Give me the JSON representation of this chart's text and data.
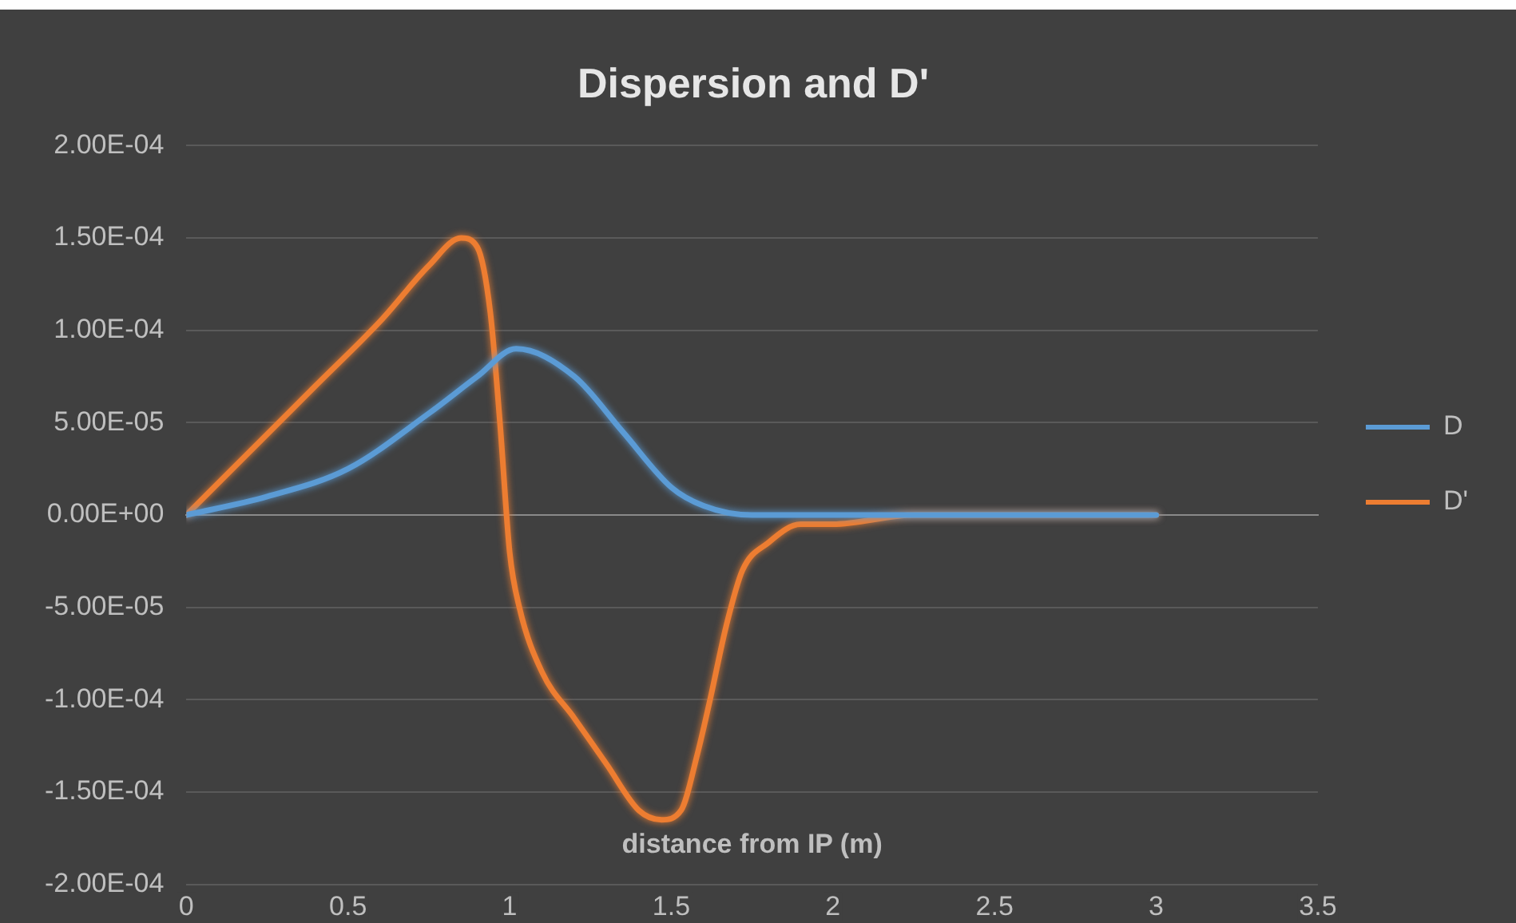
{
  "chart_data": {
    "type": "line",
    "title": "Dispersion and D'",
    "xlabel": "distance from IP (m)",
    "xlim": [
      0,
      3.5
    ],
    "xticks": [
      0,
      0.5,
      1,
      1.5,
      2,
      2.5,
      3,
      3.5
    ],
    "ylim": [
      -0.0002,
      0.0002
    ],
    "yticks": [
      {
        "value": -0.0002,
        "label": "-2.00E-04"
      },
      {
        "value": -0.00015,
        "label": "-1.50E-04"
      },
      {
        "value": -0.0001,
        "label": "-1.00E-04"
      },
      {
        "value": -5e-05,
        "label": "-5.00E-05"
      },
      {
        "value": 0,
        "label": "0.00E+00"
      },
      {
        "value": 5e-05,
        "label": "5.00E-05"
      },
      {
        "value": 0.0001,
        "label": "1.00E-04"
      },
      {
        "value": 0.00015,
        "label": "1.50E-04"
      },
      {
        "value": 0.0002,
        "label": "2.00E-04"
      }
    ],
    "grid": "y",
    "legend": "right",
    "marker": "none",
    "line_style": "solid",
    "series": [
      {
        "name": "D",
        "color": "#5b9bd5",
        "x": [
          0,
          0.25,
          0.5,
          0.75,
          0.9,
          1.02,
          1.2,
          1.35,
          1.5,
          1.6,
          1.75,
          2,
          2.5,
          3
        ],
        "values": [
          0,
          1e-05,
          2.5e-05,
          5.5e-05,
          7.5e-05,
          9e-05,
          7.5e-05,
          4.5e-05,
          1.5e-05,
          5e-06,
          0,
          0,
          0,
          0
        ]
      },
      {
        "name": "D'",
        "color": "#ed7d31",
        "x": [
          0,
          0.2,
          0.4,
          0.6,
          0.75,
          0.85,
          0.9,
          0.94,
          0.97,
          1,
          1.03,
          1.1,
          1.2,
          1.3,
          1.4,
          1.47,
          1.53,
          1.58,
          1.62,
          1.67,
          1.72,
          1.8,
          1.9,
          2,
          2.25,
          2.5,
          3
        ],
        "values": [
          0,
          3.5e-05,
          7e-05,
          0.000105,
          0.000135,
          0.00015,
          0.000145,
          0.00011,
          5e-05,
          -2e-05,
          -5e-05,
          -8.5e-05,
          -0.00011,
          -0.000135,
          -0.00016,
          -0.000165,
          -0.00016,
          -0.00013,
          -0.0001,
          -6e-05,
          -3e-05,
          -1.5e-05,
          -5e-06,
          -5e-06,
          0,
          0,
          0
        ]
      }
    ]
  }
}
